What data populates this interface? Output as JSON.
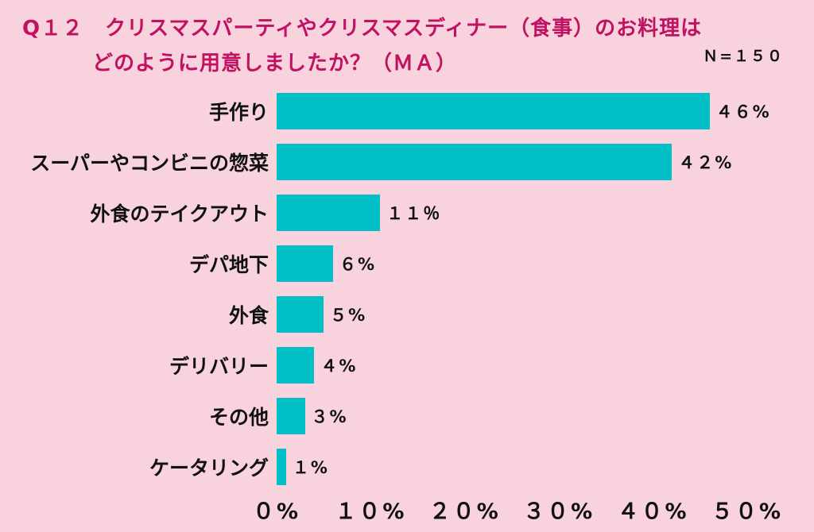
{
  "title": {
    "line1": "Q１２　クリスマスパーティやクリスマスディナー（食事）のお料理は",
    "line2": "どのように用意しましたか？（ＭＡ）",
    "n_label": "Ｎ=１５０"
  },
  "chart_data": {
    "type": "bar",
    "orientation": "horizontal",
    "title": "Q12 クリスマスパーティやクリスマスディナー（食事）のお料理はどのように用意しましたか？（MA）",
    "sample_size": "N=150",
    "categories": [
      "手作り",
      "スーパーやコンビニの惣菜",
      "外食のテイクアウト",
      "デパ地下",
      "外食",
      "デリバリー",
      "その他",
      "ケータリング"
    ],
    "values": [
      46,
      42,
      11,
      6,
      5,
      4,
      3,
      1
    ],
    "value_labels": [
      "４６%",
      "４２%",
      "１１％",
      "６%",
      "５%",
      "４%",
      "３%",
      "１%"
    ],
    "xlabel": "",
    "ylabel": "",
    "xlim": [
      0,
      50
    ],
    "x_ticks": [
      "０%",
      "１０%",
      "２０%",
      "３０%",
      "４０%",
      "５０%"
    ],
    "grid": false,
    "legend": "none"
  },
  "colors": {
    "background": "#f8d2dc",
    "bar": "#00bfc6",
    "title_text": "#c11162",
    "label_text": "#111111"
  }
}
